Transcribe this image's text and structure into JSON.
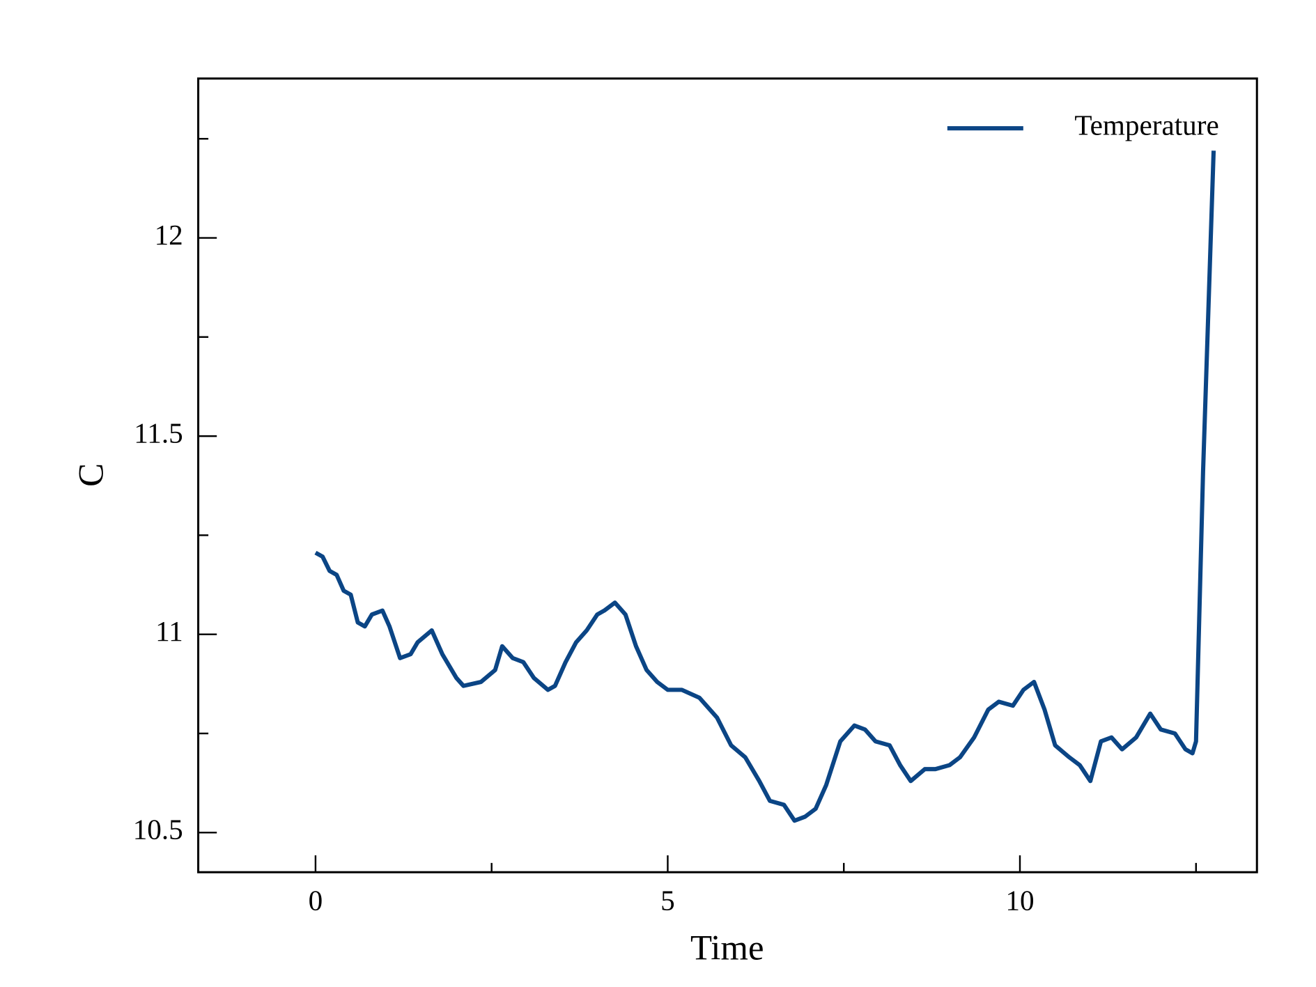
{
  "chart_data": {
    "type": "line",
    "xlabel": "Time",
    "ylabel": "C",
    "x": [
      0,
      0.1,
      0.2,
      0.3,
      0.4,
      0.5,
      0.6,
      0.7,
      0.8,
      0.95,
      1.05,
      1.2,
      1.35,
      1.45,
      1.65,
      1.8,
      2.0,
      2.1,
      2.35,
      2.55,
      2.65,
      2.8,
      2.95,
      3.1,
      3.3,
      3.4,
      3.55,
      3.7,
      3.85,
      4.0,
      4.1,
      4.25,
      4.4,
      4.55,
      4.7,
      4.85,
      5.0,
      5.2,
      5.45,
      5.7,
      5.9,
      6.1,
      6.3,
      6.45,
      6.65,
      6.8,
      6.95,
      7.1,
      7.25,
      7.45,
      7.65,
      7.8,
      7.95,
      8.15,
      8.3,
      8.45,
      8.65,
      8.8,
      9.0,
      9.15,
      9.35,
      9.55,
      9.7,
      9.9,
      10.05,
      10.2,
      10.35,
      10.5,
      10.7,
      10.85,
      11.0,
      11.15,
      11.3,
      11.45,
      11.65,
      11.85,
      12.0,
      12.2,
      12.35,
      12.45,
      12.5,
      12.6,
      12.75
    ],
    "series": [
      {
        "name": "Temperature",
        "color": "#0b4585",
        "values": [
          11.206,
          11.196,
          11.16,
          11.15,
          11.11,
          11.1,
          11.03,
          11.02,
          11.05,
          11.06,
          11.02,
          10.94,
          10.95,
          10.98,
          11.01,
          10.95,
          10.89,
          10.87,
          10.88,
          10.91,
          10.97,
          10.94,
          10.93,
          10.89,
          10.86,
          10.87,
          10.93,
          10.98,
          11.01,
          11.05,
          11.06,
          11.08,
          11.05,
          10.97,
          10.91,
          10.88,
          10.86,
          10.86,
          10.84,
          10.79,
          10.72,
          10.69,
          10.63,
          10.58,
          10.57,
          10.53,
          10.54,
          10.56,
          10.62,
          10.73,
          10.77,
          10.76,
          10.73,
          10.72,
          10.67,
          10.63,
          10.66,
          10.66,
          10.67,
          10.69,
          10.74,
          10.81,
          10.83,
          10.82,
          10.86,
          10.88,
          10.81,
          10.72,
          10.69,
          10.67,
          10.63,
          10.73,
          10.74,
          10.71,
          10.74,
          10.8,
          10.76,
          10.75,
          10.71,
          10.7,
          10.73,
          11.41,
          12.22
        ]
      }
    ],
    "xlim": [
      -1.665,
      13.365
    ],
    "ylim": [
      10.4,
      12.402
    ],
    "xticks": [
      0,
      5,
      10
    ],
    "xminorticks": [
      2.5,
      7.5,
      12.5
    ],
    "yticks": [
      10.5,
      11,
      11.5,
      12
    ],
    "yminorticks": [
      10.75,
      11.25,
      11.75,
      12.25
    ],
    "legend": "upper right"
  }
}
